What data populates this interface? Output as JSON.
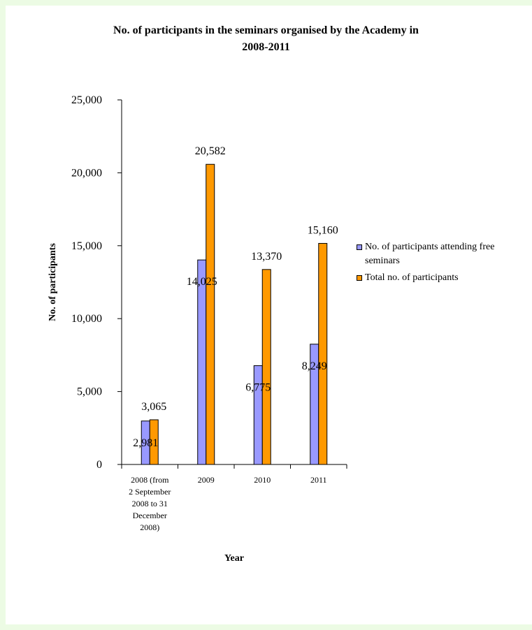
{
  "chart_data": {
    "type": "bar",
    "title": "No. of participants in the seminars organised by the Academy in 2008-2011",
    "title_lines": [
      "No. of participants in the seminars organised by the Academy in",
      "2008-2011"
    ],
    "xlabel": "Year",
    "ylabel": "No. of participants",
    "categories": [
      [
        "2008 (from",
        "2 September",
        "2008 to 31",
        "December",
        "2008)"
      ],
      [
        "2009"
      ],
      [
        "2010"
      ],
      [
        "2011"
      ]
    ],
    "series": [
      {
        "name": "No. of participants attending free seminars",
        "name_lines": [
          "No. of participants attending free",
          "seminars"
        ],
        "color": "#9999ff",
        "values": [
          2981,
          14025,
          6775,
          8249
        ],
        "labels": [
          "2,981",
          "14,025",
          "6,775",
          "8,249"
        ]
      },
      {
        "name": "Total no. of participants",
        "name_lines": [
          "Total no. of participants"
        ],
        "color": "#ff9900",
        "values": [
          3065,
          20582,
          13370,
          15160
        ],
        "labels": [
          "3,065",
          "20,582",
          "13,370",
          "15,160"
        ]
      }
    ],
    "ylim": [
      0,
      25000
    ],
    "yticks": [
      0,
      5000,
      10000,
      15000,
      20000,
      25000
    ],
    "ytick_labels": [
      "0",
      "5,000",
      "10,000",
      "15,000",
      "20,000",
      "25,000"
    ],
    "legend_position": "right",
    "grid": false
  }
}
